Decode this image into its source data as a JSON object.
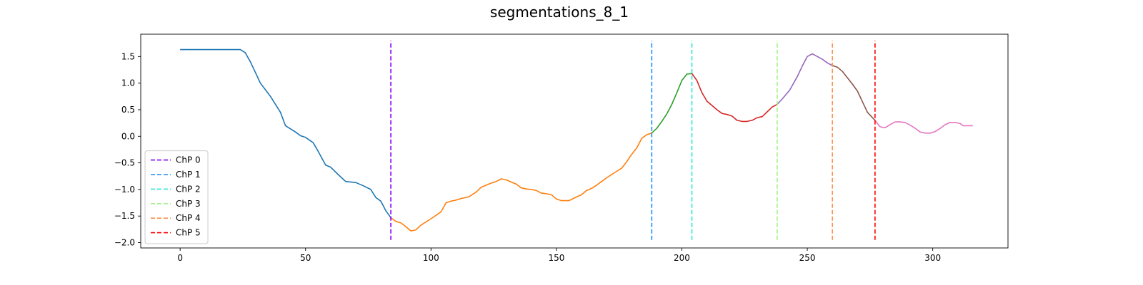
{
  "chart_data": {
    "type": "line",
    "title": "segmentations_8_1",
    "xlabel": "",
    "ylabel": "",
    "xlim": [
      -15.7,
      330
    ],
    "ylim": [
      -2.1,
      1.92
    ],
    "x_ticks": [
      0,
      50,
      100,
      150,
      200,
      250,
      300
    ],
    "x_tick_labels": [
      "0",
      "50",
      "100",
      "150",
      "200",
      "250",
      "300"
    ],
    "y_ticks": [
      -2.0,
      -1.5,
      -1.0,
      -0.5,
      0.0,
      0.5,
      1.0,
      1.5
    ],
    "y_tick_labels": [
      "−2.0",
      "−1.5",
      "−1.0",
      "−0.5",
      "0.0",
      "0.5",
      "1.0",
      "1.5"
    ],
    "grid": false,
    "legend_position": "lower-left",
    "series": [
      {
        "color": "#1f77b4",
        "points": [
          [
            0,
            1.63
          ],
          [
            10,
            1.63
          ],
          [
            20,
            1.63
          ],
          [
            24,
            1.63
          ],
          [
            26,
            1.57
          ],
          [
            28,
            1.4
          ],
          [
            30,
            1.2
          ],
          [
            32,
            1.0
          ],
          [
            36,
            0.75
          ],
          [
            40,
            0.45
          ],
          [
            42,
            0.2
          ],
          [
            46,
            0.08
          ],
          [
            48,
            0.01
          ],
          [
            50,
            -0.02
          ],
          [
            53,
            -0.12
          ],
          [
            55,
            -0.28
          ],
          [
            58,
            -0.54
          ],
          [
            60,
            -0.58
          ],
          [
            63,
            -0.72
          ],
          [
            66,
            -0.85
          ],
          [
            70,
            -0.87
          ],
          [
            73,
            -0.93
          ],
          [
            76,
            -1.0
          ],
          [
            78,
            -1.15
          ],
          [
            80,
            -1.22
          ],
          [
            82,
            -1.4
          ],
          [
            84,
            -1.53
          ]
        ]
      },
      {
        "color": "#ff7f0e",
        "points": [
          [
            84,
            -1.53
          ],
          [
            86,
            -1.6
          ],
          [
            88,
            -1.63
          ],
          [
            90,
            -1.7
          ],
          [
            92,
            -1.78
          ],
          [
            94,
            -1.76
          ],
          [
            96,
            -1.67
          ],
          [
            100,
            -1.55
          ],
          [
            104,
            -1.42
          ],
          [
            106,
            -1.25
          ],
          [
            108,
            -1.22
          ],
          [
            110,
            -1.2
          ],
          [
            112,
            -1.17
          ],
          [
            115,
            -1.14
          ],
          [
            118,
            -1.05
          ],
          [
            120,
            -0.96
          ],
          [
            122,
            -0.92
          ],
          [
            124,
            -0.88
          ],
          [
            126,
            -0.85
          ],
          [
            128,
            -0.8
          ],
          [
            130,
            -0.82
          ],
          [
            132,
            -0.86
          ],
          [
            134,
            -0.9
          ],
          [
            136,
            -0.97
          ],
          [
            138,
            -0.99
          ],
          [
            140,
            -1.0
          ],
          [
            142,
            -1.02
          ],
          [
            144,
            -1.07
          ],
          [
            146,
            -1.08
          ],
          [
            148,
            -1.1
          ],
          [
            150,
            -1.18
          ],
          [
            152,
            -1.21
          ],
          [
            155,
            -1.21
          ],
          [
            158,
            -1.14
          ],
          [
            160,
            -1.1
          ],
          [
            162,
            -1.02
          ],
          [
            164,
            -0.98
          ],
          [
            166,
            -0.92
          ],
          [
            168,
            -0.85
          ],
          [
            170,
            -0.78
          ],
          [
            172,
            -0.72
          ],
          [
            174,
            -0.66
          ],
          [
            176,
            -0.6
          ],
          [
            178,
            -0.48
          ],
          [
            180,
            -0.34
          ],
          [
            182,
            -0.22
          ],
          [
            184,
            -0.04
          ],
          [
            186,
            0.03
          ],
          [
            188,
            0.06
          ]
        ]
      },
      {
        "color": "#2ca02c",
        "points": [
          [
            188,
            0.06
          ],
          [
            190,
            0.15
          ],
          [
            192,
            0.28
          ],
          [
            194,
            0.42
          ],
          [
            196,
            0.6
          ],
          [
            198,
            0.82
          ],
          [
            200,
            1.05
          ],
          [
            202,
            1.17
          ],
          [
            204,
            1.18
          ]
        ]
      },
      {
        "color": "#d62728",
        "points": [
          [
            204,
            1.18
          ],
          [
            206,
            1.05
          ],
          [
            208,
            0.82
          ],
          [
            210,
            0.66
          ],
          [
            212,
            0.58
          ],
          [
            214,
            0.5
          ],
          [
            216,
            0.43
          ],
          [
            218,
            0.41
          ],
          [
            220,
            0.38
          ],
          [
            222,
            0.3
          ],
          [
            224,
            0.28
          ],
          [
            226,
            0.28
          ],
          [
            228,
            0.3
          ],
          [
            230,
            0.35
          ],
          [
            232,
            0.37
          ],
          [
            234,
            0.46
          ],
          [
            236,
            0.55
          ],
          [
            238,
            0.6
          ]
        ]
      },
      {
        "color": "#9467bd",
        "points": [
          [
            238,
            0.6
          ],
          [
            240,
            0.7
          ],
          [
            243,
            0.87
          ],
          [
            246,
            1.12
          ],
          [
            248,
            1.32
          ],
          [
            250,
            1.5
          ],
          [
            252,
            1.55
          ],
          [
            254,
            1.5
          ],
          [
            256,
            1.45
          ],
          [
            258,
            1.38
          ],
          [
            260,
            1.33
          ]
        ]
      },
      {
        "color": "#8c564b",
        "points": [
          [
            260,
            1.33
          ],
          [
            262,
            1.3
          ],
          [
            264,
            1.22
          ],
          [
            266,
            1.1
          ],
          [
            268,
            0.98
          ],
          [
            270,
            0.85
          ],
          [
            272,
            0.65
          ],
          [
            274,
            0.45
          ],
          [
            277,
            0.3
          ]
        ]
      },
      {
        "color": "#e377c2",
        "points": [
          [
            277,
            0.3
          ],
          [
            279,
            0.18
          ],
          [
            281,
            0.16
          ],
          [
            283,
            0.22
          ],
          [
            285,
            0.27
          ],
          [
            287,
            0.27
          ],
          [
            289,
            0.26
          ],
          [
            291,
            0.21
          ],
          [
            293,
            0.15
          ],
          [
            295,
            0.08
          ],
          [
            297,
            0.06
          ],
          [
            299,
            0.06
          ],
          [
            301,
            0.09
          ],
          [
            303,
            0.15
          ],
          [
            305,
            0.22
          ],
          [
            307,
            0.26
          ],
          [
            309,
            0.26
          ],
          [
            311,
            0.24
          ],
          [
            312,
            0.2
          ],
          [
            314,
            0.2
          ],
          [
            316,
            0.2
          ]
        ]
      }
    ],
    "changepoints": [
      {
        "name": "ChP 0",
        "x": 84,
        "color": "#8000ff"
      },
      {
        "name": "ChP 1",
        "x": 188,
        "color": "#1c8ef5"
      },
      {
        "name": "ChP 2",
        "x": 204,
        "color": "#2ce8d4"
      },
      {
        "name": "ChP 3",
        "x": 238,
        "color": "#a4f08a"
      },
      {
        "name": "ChP 4",
        "x": 260,
        "color": "#ff8f4a"
      },
      {
        "name": "ChP 5",
        "x": 277,
        "color": "#ff0000"
      }
    ],
    "changepoint_ylim": [
      -1.95,
      1.8
    ]
  }
}
